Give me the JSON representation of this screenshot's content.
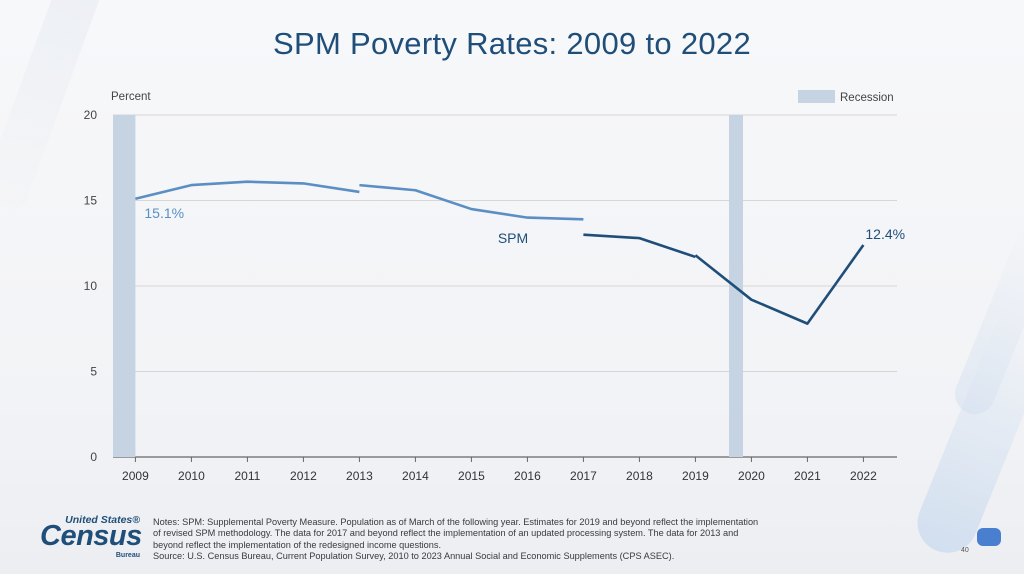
{
  "title": "SPM Poverty Rates: 2009 to 2022",
  "colors": {
    "title": "#1f4e79",
    "line_dark": "#1f4e79",
    "line_light": "#5b8fc4",
    "recession": "#c5d3e2",
    "grid": "#d6d6d6",
    "axis": "#666666"
  },
  "chart_data": {
    "type": "line",
    "title": "SPM Poverty Rates: 2009 to 2022",
    "ylabel": "Percent",
    "xlabel": "",
    "ylim": [
      0,
      20
    ],
    "yticks": [
      0,
      5,
      10,
      15,
      20
    ],
    "categories": [
      "2009",
      "2010",
      "2011",
      "2012",
      "2013",
      "2014",
      "2015",
      "2016",
      "2017",
      "2018",
      "2019",
      "2020",
      "2021",
      "2022"
    ],
    "legend": {
      "label": "Recession",
      "position": "top-right"
    },
    "recessions": [
      {
        "from": 2008.6,
        "to": 2009.0
      },
      {
        "from": 2019.6,
        "to": 2019.85
      }
    ],
    "series_label": "SPM",
    "series": [
      {
        "points": [
          [
            2009,
            15.1
          ],
          [
            2010,
            15.9
          ],
          [
            2011,
            16.1
          ],
          [
            2012,
            16.0
          ],
          [
            2013,
            15.5
          ]
        ],
        "style": "light"
      },
      {
        "points": [
          [
            2013,
            15.9
          ],
          [
            2014,
            15.6
          ],
          [
            2015,
            14.5
          ],
          [
            2016,
            14.0
          ],
          [
            2017,
            13.9
          ]
        ],
        "style": "light"
      },
      {
        "points": [
          [
            2017,
            13.0
          ],
          [
            2018,
            12.8
          ],
          [
            2019,
            11.7
          ]
        ],
        "style": "dark"
      },
      {
        "points": [
          [
            2019,
            11.8
          ],
          [
            2020,
            9.2
          ],
          [
            2021,
            7.8
          ],
          [
            2022,
            12.4
          ]
        ],
        "style": "dark"
      }
    ],
    "annotations": [
      {
        "text": "15.1%",
        "x": 2009,
        "y": 15.1
      },
      {
        "text": "12.4%",
        "x": 2022,
        "y": 12.4
      }
    ]
  },
  "notes": [
    "Notes: SPM: Supplemental Poverty Measure. Population as of March of the following year. Estimates for 2019 and beyond reflect the implementation",
    "of revised SPM methodology. The data for 2017 and beyond reflect the implementation of an updated processing system. The data for 2013 and",
    "beyond reflect the implementation of the redesigned income questions.",
    "Source: U.S. Census Bureau, Current Population Survey, 2010 to 2023 Annual Social and Economic Supplements (CPS ASEC)."
  ],
  "logo": {
    "line1": "United States®",
    "line2": "Census",
    "line3": "Bureau"
  },
  "page_number": "40"
}
